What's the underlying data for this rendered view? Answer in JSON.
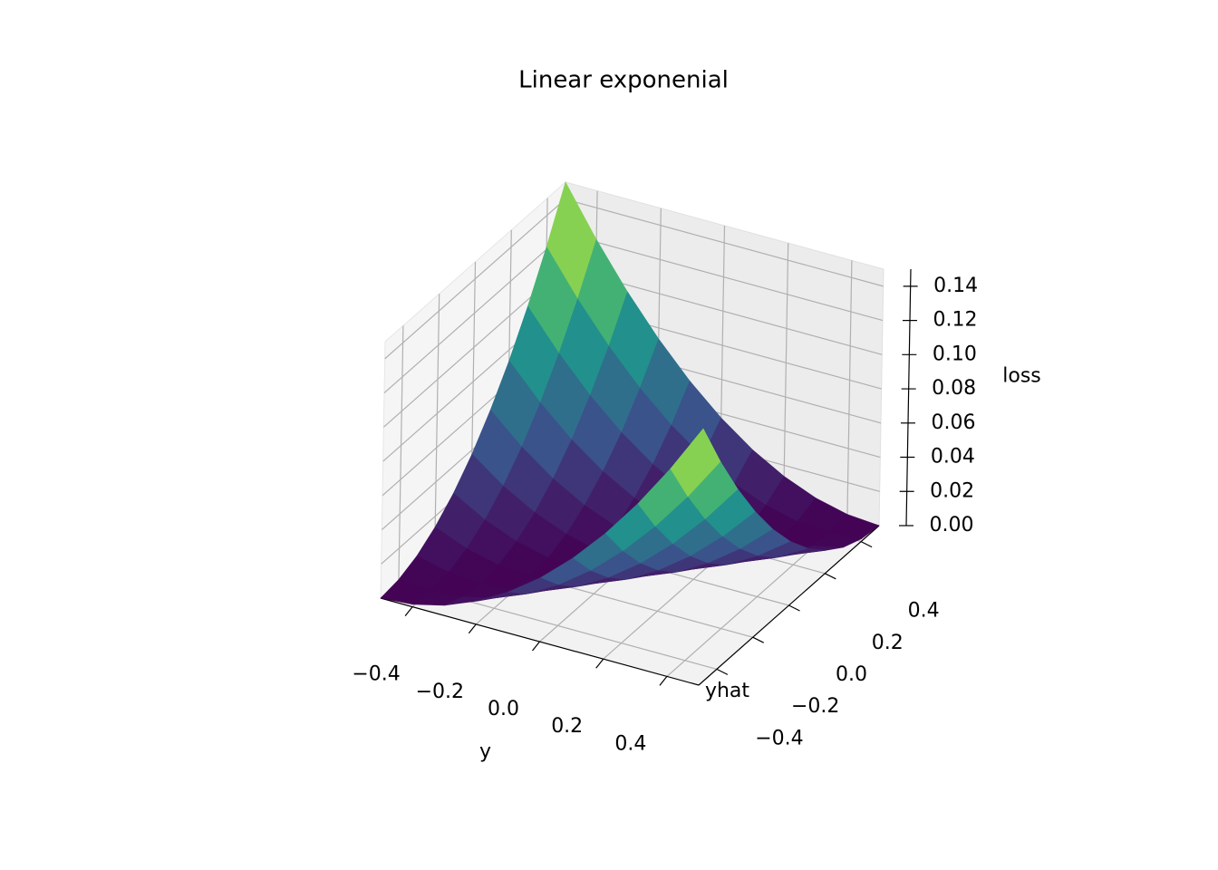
{
  "chart_data": {
    "type": "surface",
    "title": "Linear exponenial",
    "xlabel": "y",
    "ylabel": "yhat",
    "zlabel": "loss",
    "colormap": "viridis",
    "x": [
      -0.5,
      -0.4,
      -0.3,
      -0.2,
      -0.1,
      0,
      0.1,
      0.2,
      0.3,
      0.4,
      0.5
    ],
    "y": [
      -0.5,
      -0.4,
      -0.3,
      -0.2,
      -0.1,
      0,
      0.1,
      0.2,
      0.3,
      0.4,
      0.5
    ],
    "z": [
      [
        0,
        0.0015,
        0.006,
        0.0135,
        0.024,
        0.0375,
        0.054,
        0.0735,
        0.096,
        0.1215,
        0.15
      ],
      [
        0.0015,
        0,
        0.0015,
        0.006,
        0.0135,
        0.024,
        0.0375,
        0.054,
        0.0735,
        0.096,
        0.1215
      ],
      [
        0.006,
        0.0015,
        0,
        0.0015,
        0.006,
        0.0135,
        0.024,
        0.0375,
        0.054,
        0.0735,
        0.096
      ],
      [
        0.0135,
        0.006,
        0.0015,
        0,
        0.0015,
        0.006,
        0.0135,
        0.024,
        0.0375,
        0.054,
        0.0735
      ],
      [
        0.024,
        0.0135,
        0.006,
        0.0015,
        0,
        0.0015,
        0.006,
        0.0135,
        0.024,
        0.0375,
        0.054
      ],
      [
        0.0375,
        0.024,
        0.0135,
        0.006,
        0.0015,
        0,
        0.0015,
        0.006,
        0.0135,
        0.024,
        0.0375
      ],
      [
        0.054,
        0.0375,
        0.024,
        0.0135,
        0.006,
        0.0015,
        0,
        0.0015,
        0.006,
        0.0135,
        0.024
      ],
      [
        0.0735,
        0.054,
        0.0375,
        0.024,
        0.0135,
        0.006,
        0.0015,
        0,
        0.0015,
        0.006,
        0.0135
      ],
      [
        0.096,
        0.0735,
        0.054,
        0.0375,
        0.024,
        0.0135,
        0.006,
        0.0015,
        0,
        0.0015,
        0.006
      ],
      [
        0.1215,
        0.096,
        0.0735,
        0.054,
        0.0375,
        0.024,
        0.0135,
        0.006,
        0.0015,
        0,
        0.0015
      ],
      [
        0.15,
        0.1215,
        0.096,
        0.0735,
        0.054,
        0.0375,
        0.024,
        0.0135,
        0.006,
        0.0015,
        0
      ]
    ],
    "xlim": [
      -0.5,
      0.5
    ],
    "ylim": [
      -0.5,
      0.5
    ],
    "zlim": [
      0,
      0.15
    ],
    "xticks": [
      {
        "value": -0.4,
        "label": "−0.4"
      },
      {
        "value": -0.2,
        "label": "−0.2"
      },
      {
        "value": 0,
        "label": "0.0"
      },
      0.2,
      0.4
    ],
    "yticks": [
      {
        "value": -0.4,
        "label": "−0.4"
      },
      {
        "value": -0.2,
        "label": "−0.2"
      },
      {
        "value": 0,
        "label": "0.0"
      },
      0.2,
      0.4
    ],
    "zticks": [
      {
        "value": 0,
        "label": "0.00"
      },
      0.02,
      0.04,
      0.06,
      0.08,
      {
        "value": 0.1,
        "label": "0.10"
      },
      0.12,
      0.14
    ],
    "grid": true
  }
}
